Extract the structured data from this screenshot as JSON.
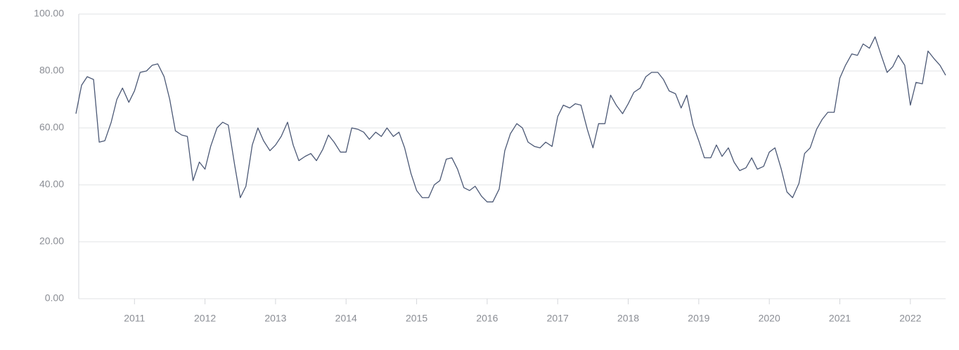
{
  "chart_data": {
    "type": "line",
    "x": [
      2010.17,
      2010.25,
      2010.33,
      2010.42,
      2010.5,
      2010.58,
      2010.67,
      2010.75,
      2010.83,
      2010.92,
      2011,
      2011.08,
      2011.17,
      2011.25,
      2011.33,
      2011.42,
      2011.5,
      2011.58,
      2011.67,
      2011.75,
      2011.83,
      2011.92,
      2012,
      2012.08,
      2012.17,
      2012.25,
      2012.33,
      2012.42,
      2012.5,
      2012.58,
      2012.67,
      2012.75,
      2012.83,
      2012.92,
      2013,
      2013.08,
      2013.17,
      2013.25,
      2013.33,
      2013.42,
      2013.5,
      2013.58,
      2013.67,
      2013.75,
      2013.83,
      2013.92,
      2014,
      2014.08,
      2014.17,
      2014.25,
      2014.33,
      2014.42,
      2014.5,
      2014.58,
      2014.67,
      2014.75,
      2014.83,
      2014.92,
      2015,
      2015.08,
      2015.17,
      2015.25,
      2015.33,
      2015.42,
      2015.5,
      2015.58,
      2015.67,
      2015.75,
      2015.83,
      2015.92,
      2016,
      2016.08,
      2016.17,
      2016.25,
      2016.33,
      2016.42,
      2016.5,
      2016.58,
      2016.67,
      2016.75,
      2016.83,
      2016.92,
      2017,
      2017.08,
      2017.17,
      2017.25,
      2017.33,
      2017.42,
      2017.5,
      2017.58,
      2017.67,
      2017.75,
      2017.83,
      2017.92,
      2018,
      2018.08,
      2018.17,
      2018.25,
      2018.33,
      2018.42,
      2018.5,
      2018.58,
      2018.67,
      2018.75,
      2018.83,
      2018.92,
      2019,
      2019.08,
      2019.17,
      2019.25,
      2019.33,
      2019.42,
      2019.5,
      2019.58,
      2019.67,
      2019.75,
      2019.83,
      2019.92,
      2020,
      2020.08,
      2020.17,
      2020.25,
      2020.33,
      2020.42,
      2020.5,
      2020.58,
      2020.67,
      2020.75,
      2020.83,
      2020.92,
      2021,
      2021.08,
      2021.17,
      2021.25,
      2021.33,
      2021.42,
      2021.5,
      2021.58,
      2021.67,
      2021.75,
      2021.83,
      2021.92,
      2022,
      2022.08,
      2022.17,
      2022.25,
      2022.33,
      2022.42,
      2022.5
    ],
    "series": [
      {
        "color": "#4b5875",
        "values": [
          65,
          75,
          78,
          77,
          55,
          55.5,
          62,
          70,
          74,
          69,
          73,
          79.5,
          80,
          82,
          82.5,
          78,
          70,
          59,
          57.5,
          57,
          41.5,
          48,
          45.5,
          53.5,
          60,
          62,
          61,
          47,
          35.5,
          39.5,
          54,
          60,
          55.5,
          52,
          54,
          57,
          62,
          54,
          48.5,
          50,
          51,
          48.5,
          52.5,
          57.5,
          55,
          51.5,
          51.5,
          60,
          59.5,
          58.5,
          56,
          58.5,
          57,
          60,
          57,
          58.5,
          53,
          44,
          38,
          35.5,
          35.5,
          40,
          41.5,
          49,
          49.5,
          45.5,
          39,
          38,
          39.5,
          36,
          34,
          34,
          38.5,
          52,
          58,
          61.5,
          60,
          55,
          53.5,
          53,
          55,
          53.5,
          64,
          68,
          67,
          68.5,
          68,
          59.5,
          53,
          61.5,
          61.5,
          71.5,
          68,
          65,
          68.5,
          72.5,
          74,
          78,
          79.5,
          79.5,
          77,
          73,
          72,
          67,
          71.5,
          61,
          55.5,
          49.5,
          49.5,
          54,
          50,
          53,
          48,
          45,
          46,
          49.5,
          45.5,
          46.5,
          51.5,
          53,
          45.5,
          37.5,
          35.5,
          40.5,
          51,
          53,
          59.5,
          63,
          65.5,
          65.5,
          77.5,
          82,
          86,
          85.5,
          89.5,
          88,
          92,
          86,
          79.5,
          81.5,
          85.5,
          82,
          68,
          76,
          75.5,
          87,
          84.5,
          82,
          78.5
        ]
      }
    ],
    "xlim": [
      2010.17,
      2022.5
    ],
    "xticks": [
      2011,
      2012,
      2013,
      2014,
      2015,
      2016,
      2017,
      2018,
      2019,
      2020,
      2021,
      2022
    ],
    "ylim": [
      0,
      100
    ],
    "yticks": [
      {
        "value": 0,
        "label": "0.00"
      },
      {
        "value": 20,
        "label": "20.00"
      },
      {
        "value": 40,
        "label": "40.00"
      },
      {
        "value": 60,
        "label": "60.00"
      },
      {
        "value": 80,
        "label": "80.00"
      },
      {
        "value": 100,
        "label": "100.00"
      }
    ],
    "grid": true
  }
}
